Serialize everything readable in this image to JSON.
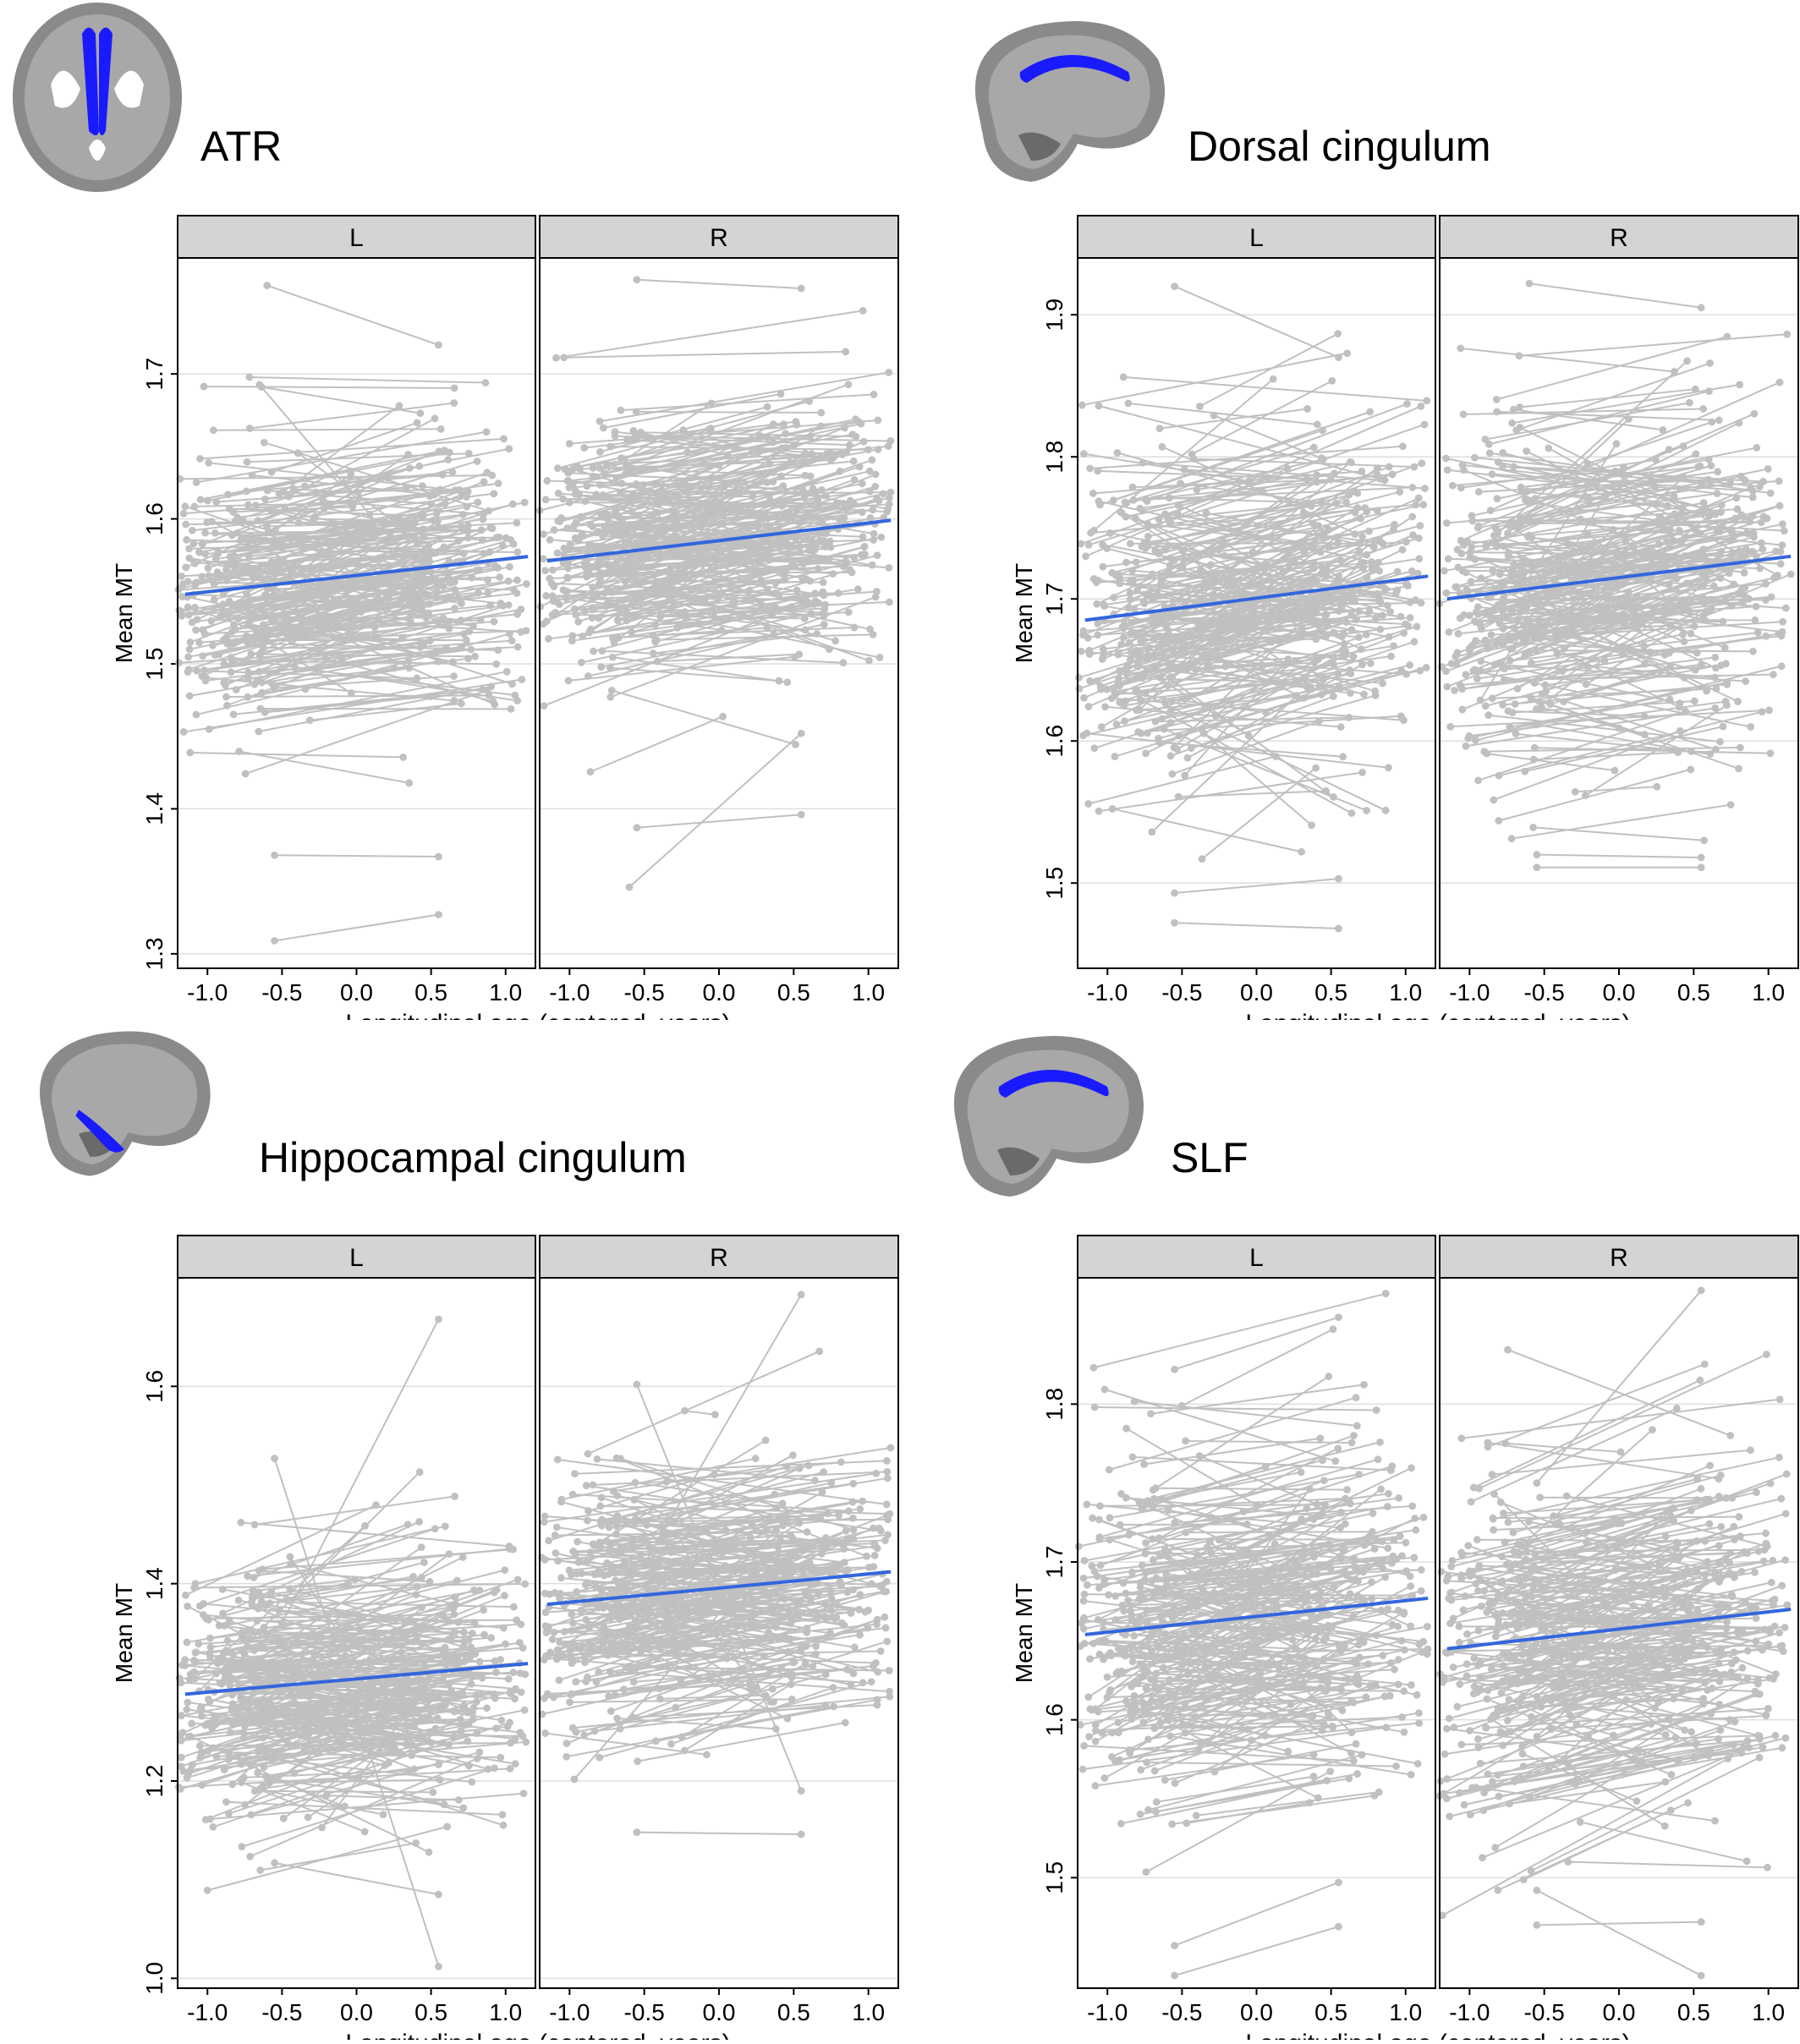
{
  "figure": {
    "axis_ylabel": "Mean MT",
    "axis_xlabel": "Longitudinal age (centered, years)",
    "facet_labels": [
      "L",
      "R"
    ],
    "colors": {
      "trajectory": "#c0c0c0",
      "fit_line": "#3366dd",
      "strip_fill": "#d4d4d4",
      "tract_highlight": "#1a1aff"
    }
  },
  "chart_data": [
    {
      "type": "line",
      "title": "ATR",
      "xlabel": "Longitudinal age (centered, years)",
      "ylabel": "Mean MT",
      "facets": [
        "L",
        "R"
      ],
      "xlim": [
        -1.2,
        1.2
      ],
      "ylim": [
        1.29,
        1.78
      ],
      "xticks": [
        -1.0,
        -0.5,
        0.0,
        0.5,
        1.0
      ],
      "xtick_labels": [
        "-1.0",
        "-0.5",
        "0.0",
        "0.5",
        "1.0"
      ],
      "yticks": [
        1.3,
        1.4,
        1.5,
        1.6,
        1.7
      ],
      "ytick_labels": [
        "1.3",
        "1.4",
        "1.5",
        "1.6",
        "1.7"
      ],
      "fit": {
        "L": [
          [
            -1.15,
            1.548
          ],
          [
            1.15,
            1.574
          ]
        ],
        "R": [
          [
            -1.15,
            1.571
          ],
          [
            1.15,
            1.599
          ]
        ]
      },
      "data_center": {
        "L": 1.56,
        "R": 1.585
      },
      "data_spread": 0.045,
      "subject_slope_spread": 0.06,
      "sample_subjects": {
        "L": [
          [
            -0.55,
            1.309,
            0.55,
            1.327
          ],
          [
            -0.55,
            1.368,
            0.55,
            1.367
          ],
          [
            -0.6,
            1.761,
            0.55,
            1.72
          ]
        ],
        "R": [
          [
            -0.55,
            1.765,
            0.55,
            1.759
          ],
          [
            -0.6,
            1.346,
            0.55,
            1.452
          ],
          [
            -0.55,
            1.387,
            0.55,
            1.396
          ]
        ]
      },
      "grid": true
    },
    {
      "type": "line",
      "title": "Dorsal cingulum",
      "xlabel": "Longitudinal age (centered, years)",
      "ylabel": "Mean MT",
      "facets": [
        "L",
        "R"
      ],
      "xlim": [
        -1.2,
        1.2
      ],
      "ylim": [
        1.44,
        1.94
      ],
      "xticks": [
        -1.0,
        -0.5,
        0.0,
        0.5,
        1.0
      ],
      "xtick_labels": [
        "-1.0",
        "-0.5",
        "0.0",
        "0.5",
        "1.0"
      ],
      "yticks": [
        1.5,
        1.6,
        1.7,
        1.8,
        1.9
      ],
      "ytick_labels": [
        "1.5",
        "1.6",
        "1.7",
        "1.8",
        "1.9"
      ],
      "fit": {
        "L": [
          [
            -1.15,
            1.685
          ],
          [
            1.15,
            1.716
          ]
        ],
        "R": [
          [
            -1.15,
            1.7
          ],
          [
            1.15,
            1.73
          ]
        ]
      },
      "data_center": {
        "L": 1.7,
        "R": 1.715
      },
      "data_spread": 0.055,
      "subject_slope_spread": 0.08,
      "sample_subjects": {
        "L": [
          [
            -0.55,
            1.472,
            0.55,
            1.468
          ],
          [
            -0.55,
            1.493,
            0.55,
            1.503
          ],
          [
            -0.55,
            1.92,
            0.55,
            1.87
          ]
        ],
        "R": [
          [
            -0.55,
            1.511,
            0.55,
            1.511
          ],
          [
            -0.55,
            1.52,
            0.55,
            1.518
          ],
          [
            -0.6,
            1.922,
            0.55,
            1.905
          ]
        ]
      },
      "grid": true
    },
    {
      "type": "line",
      "title": "Hippocampal cingulum",
      "xlabel": "Longitudinal age (centered, years)",
      "ylabel": "Mean MT",
      "facets": [
        "L",
        "R"
      ],
      "xlim": [
        -1.2,
        1.2
      ],
      "ylim": [
        0.99,
        1.71
      ],
      "xticks": [
        -1.0,
        -0.5,
        0.0,
        0.5,
        1.0
      ],
      "xtick_labels": [
        "-1.0",
        "-0.5",
        "0.0",
        "0.5",
        "1.0"
      ],
      "yticks": [
        1.0,
        1.2,
        1.4,
        1.6
      ],
      "ytick_labels": [
        "1.0",
        "1.2",
        "1.4",
        "1.6"
      ],
      "fit": {
        "L": [
          [
            -1.15,
            1.288
          ],
          [
            1.15,
            1.319
          ]
        ],
        "R": [
          [
            -1.15,
            1.379
          ],
          [
            1.15,
            1.412
          ]
        ]
      },
      "data_center": {
        "L": 1.3,
        "R": 1.395
      },
      "data_spread": 0.055,
      "subject_slope_spread": 0.1,
      "sample_subjects": {
        "L": [
          [
            -0.55,
            1.527,
            0.55,
            1.012
          ],
          [
            -0.55,
            1.117,
            0.55,
            1.085
          ],
          [
            -0.5,
            1.36,
            0.55,
            1.668
          ]
        ],
        "R": [
          [
            -0.55,
            1.148,
            0.55,
            1.146
          ],
          [
            -0.55,
            1.602,
            0.55,
            1.19
          ],
          [
            -0.5,
            1.42,
            0.55,
            1.693
          ]
        ]
      },
      "grid": true
    },
    {
      "type": "line",
      "title": "SLF",
      "xlabel": "Longitudinal age (centered, years)",
      "ylabel": "Mean MT",
      "facets": [
        "L",
        "R"
      ],
      "xlim": [
        -1.2,
        1.2
      ],
      "ylim": [
        1.43,
        1.88
      ],
      "xticks": [
        -1.0,
        -0.5,
        0.0,
        0.5,
        1.0
      ],
      "xtick_labels": [
        "-1.0",
        "-0.5",
        "0.0",
        "0.5",
        "1.0"
      ],
      "yticks": [
        1.5,
        1.6,
        1.7,
        1.8
      ],
      "ytick_labels": [
        "1.5",
        "1.6",
        "1.7",
        "1.8"
      ],
      "fit": {
        "L": [
          [
            -1.15,
            1.654
          ],
          [
            1.15,
            1.677
          ]
        ],
        "R": [
          [
            -1.15,
            1.645
          ],
          [
            1.15,
            1.67
          ]
        ]
      },
      "data_center": {
        "L": 1.665,
        "R": 1.655
      },
      "data_spread": 0.05,
      "subject_slope_spread": 0.07,
      "sample_subjects": {
        "L": [
          [
            -0.55,
            1.438,
            0.55,
            1.469
          ],
          [
            -0.55,
            1.457,
            0.55,
            1.497
          ],
          [
            -0.55,
            1.822,
            0.55,
            1.855
          ]
        ],
        "R": [
          [
            -0.55,
            1.47,
            0.55,
            1.472
          ],
          [
            -0.55,
            1.492,
            0.55,
            1.438
          ],
          [
            -0.55,
            1.75,
            0.55,
            1.872
          ]
        ]
      },
      "grid": true
    }
  ]
}
